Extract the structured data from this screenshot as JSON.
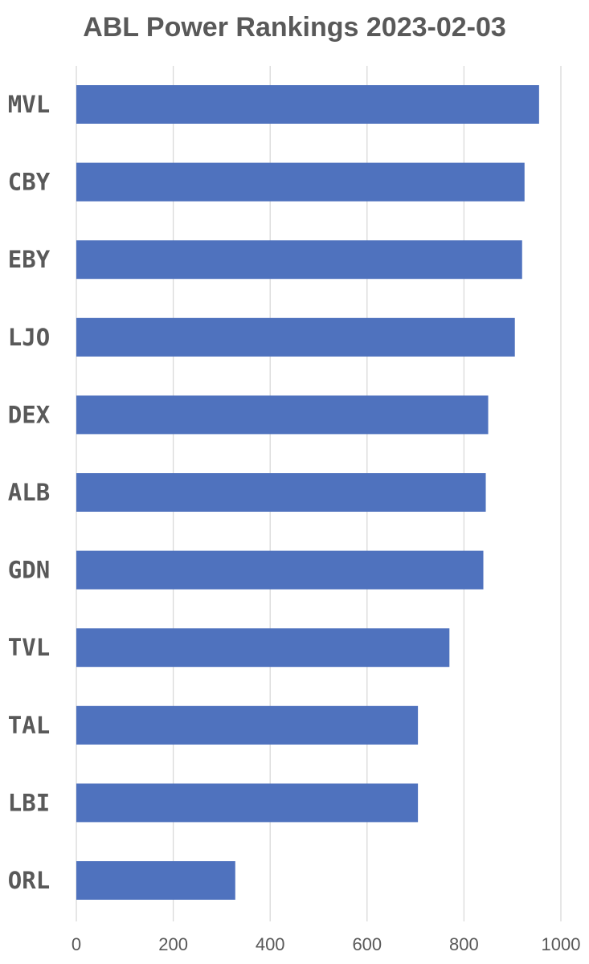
{
  "chart_data": {
    "type": "bar",
    "orientation": "horizontal",
    "title": "ABL Power Rankings 2023-02-03",
    "xlabel": "",
    "ylabel": "",
    "categories": [
      "MVL",
      "CBY",
      "EBY",
      "LJO",
      "DEX",
      "ALB",
      "GDN",
      "TVL",
      "TAL",
      "LBI",
      "ORL"
    ],
    "values": [
      955,
      925,
      920,
      905,
      850,
      845,
      840,
      770,
      705,
      705,
      328
    ],
    "xlim": [
      0,
      1000
    ],
    "xticks": [
      "0",
      "200",
      "400",
      "600",
      "800",
      "1000"
    ],
    "grid": "vertical",
    "legend": "none",
    "bar_color": "#4F72BE",
    "grid_color": "#D9D9D9",
    "text_color": "#595959"
  }
}
